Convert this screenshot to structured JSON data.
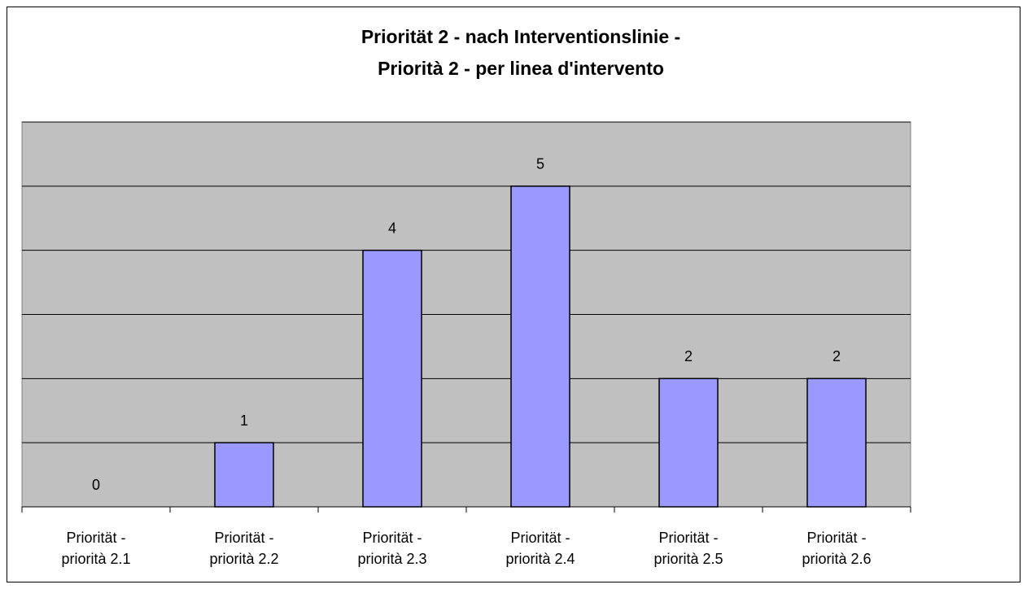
{
  "chart_data": {
    "type": "bar",
    "title": [
      "Priorität 2 - nach Interventionslinie -",
      "Priorità 2 - per linea d'intervento"
    ],
    "categories": [
      [
        "Priorität -",
        "priorità 2.1"
      ],
      [
        "Priorität -",
        "priorità 2.2"
      ],
      [
        "Priorität -",
        "priorità 2.3"
      ],
      [
        "Priorität -",
        "priorità 2.4"
      ],
      [
        "Priorität -",
        "priorità 2.5"
      ],
      [
        "Priorität -",
        "priorità 2.6"
      ]
    ],
    "values": [
      0,
      1,
      4,
      5,
      2,
      2
    ],
    "color": "#9999ff",
    "ylim": [
      0,
      6
    ],
    "yticks": [
      0,
      1,
      2,
      3,
      4,
      5,
      6
    ],
    "grid": true
  }
}
